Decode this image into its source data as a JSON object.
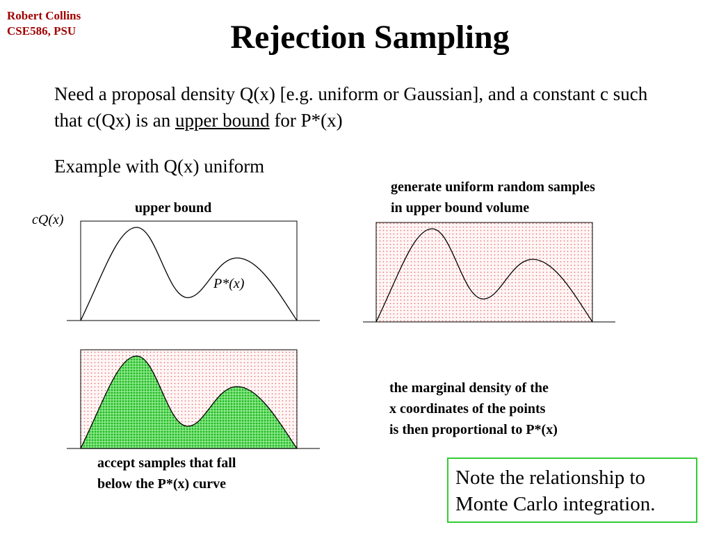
{
  "header": {
    "author": "Robert Collins",
    "course": "CSE586, PSU",
    "title": "Rejection Sampling"
  },
  "intro": {
    "part1": "Need a proposal density Q(x)  [e.g. uniform or Gaussian], and a constant c such that c(Qx) is an ",
    "underlined": "upper bound",
    "part2": " for P*(x)"
  },
  "example": "Example with Q(x) uniform",
  "figure1": {
    "bound_label": "upper bound",
    "y_label": "cQ(x)",
    "curve_label": "P*(x)"
  },
  "figure2": {
    "caption_line1": "generate uniform random samples",
    "caption_line2": "in upper bound volume"
  },
  "figure3": {
    "caption_line1": "accept samples that fall",
    "caption_line2": "below the P*(x) curve"
  },
  "marginal": {
    "line1": "the marginal density of the",
    "line2": "x coordinates of the points",
    "line3": "is then proportional to P*(x)"
  },
  "note": {
    "line1": "Note the relationship to",
    "line2": "Monte Carlo integration."
  },
  "colors": {
    "author": "#a00000",
    "reject_dots": "#e06060",
    "accept_dots": "#00aa00",
    "note_border": "#33cc33"
  }
}
